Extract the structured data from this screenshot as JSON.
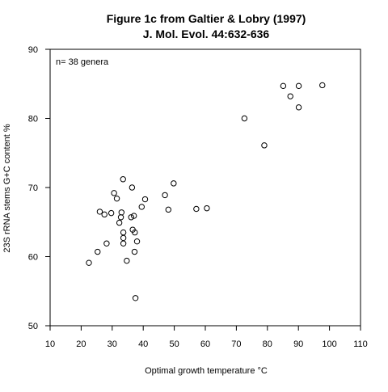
{
  "chart_data": {
    "type": "scatter",
    "title": "Figure 1c from Galtier & Lobry (1997)",
    "subtitle": "J. Mol. Evol. 44:632-636",
    "xlabel": "Optimal growth temperature °C",
    "ylabel": "23S rRNA stems G+C content %",
    "annotation": "n= 38 genera",
    "xlim": [
      10,
      110
    ],
    "ylim": [
      50,
      90
    ],
    "xticks": [
      10,
      20,
      30,
      40,
      50,
      60,
      70,
      80,
      90,
      100,
      110
    ],
    "yticks": [
      50,
      60,
      70,
      80,
      90
    ],
    "grid": false,
    "marker": "open-circle",
    "points": [
      {
        "x": 22.5,
        "y": 59.1
      },
      {
        "x": 25.3,
        "y": 60.7
      },
      {
        "x": 26.0,
        "y": 66.5
      },
      {
        "x": 27.5,
        "y": 66.1
      },
      {
        "x": 28.2,
        "y": 61.9
      },
      {
        "x": 29.7,
        "y": 66.3
      },
      {
        "x": 30.6,
        "y": 69.2
      },
      {
        "x": 31.5,
        "y": 68.4
      },
      {
        "x": 32.3,
        "y": 64.9
      },
      {
        "x": 32.8,
        "y": 65.7
      },
      {
        "x": 33.0,
        "y": 66.4
      },
      {
        "x": 33.5,
        "y": 71.2
      },
      {
        "x": 33.6,
        "y": 63.5
      },
      {
        "x": 33.6,
        "y": 62.7
      },
      {
        "x": 33.6,
        "y": 61.9
      },
      {
        "x": 34.7,
        "y": 59.4
      },
      {
        "x": 36.1,
        "y": 65.7
      },
      {
        "x": 36.4,
        "y": 70.0
      },
      {
        "x": 36.6,
        "y": 63.9
      },
      {
        "x": 37.0,
        "y": 65.9
      },
      {
        "x": 37.3,
        "y": 63.5
      },
      {
        "x": 37.2,
        "y": 60.7
      },
      {
        "x": 37.5,
        "y": 54.0
      },
      {
        "x": 38.0,
        "y": 62.2
      },
      {
        "x": 39.5,
        "y": 67.2
      },
      {
        "x": 40.6,
        "y": 68.3
      },
      {
        "x": 47.0,
        "y": 68.9
      },
      {
        "x": 48.1,
        "y": 66.8
      },
      {
        "x": 49.8,
        "y": 70.6
      },
      {
        "x": 57.1,
        "y": 66.9
      },
      {
        "x": 60.5,
        "y": 67.0
      },
      {
        "x": 72.6,
        "y": 80.0
      },
      {
        "x": 79.0,
        "y": 76.1
      },
      {
        "x": 85.1,
        "y": 84.7
      },
      {
        "x": 87.4,
        "y": 83.2
      },
      {
        "x": 90.1,
        "y": 84.7
      },
      {
        "x": 90.1,
        "y": 81.6
      },
      {
        "x": 97.7,
        "y": 84.8
      }
    ]
  }
}
